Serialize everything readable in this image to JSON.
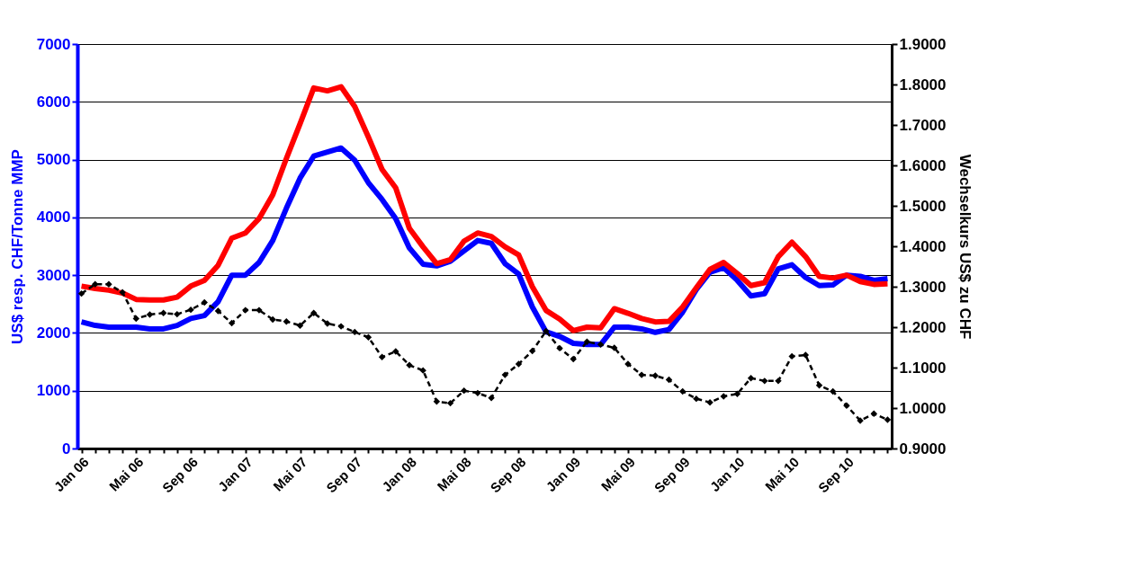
{
  "chart_data": {
    "type": "line",
    "ylabel": "US$ resp. CHF/Tonne MMP",
    "y2label": "Wechselkurs US$ zu CHF",
    "categories": [
      "Jan 06",
      null,
      null,
      null,
      "Mai 06",
      null,
      null,
      null,
      "Sep 06",
      null,
      null,
      null,
      "Jan 07",
      null,
      null,
      null,
      "Mai 07",
      null,
      null,
      null,
      "Sep 07",
      null,
      null,
      null,
      "Jan 08",
      null,
      null,
      null,
      "Mai 08",
      null,
      null,
      null,
      "Sep 08",
      null,
      null,
      null,
      "Jan 09",
      null,
      null,
      null,
      "Mai 09",
      null,
      null,
      null,
      "Sep 09",
      null,
      null,
      null,
      "Jan 10",
      null,
      null,
      null,
      "Mai 10",
      null,
      null,
      null,
      "Sep 10",
      null,
      null,
      null
    ],
    "ylim": [
      0,
      7000
    ],
    "yticks": [
      0,
      1000,
      2000,
      3000,
      4000,
      5000,
      6000,
      7000
    ],
    "y2lim": [
      0.9,
      1.9
    ],
    "y2ticks": [
      {
        "value": 0.9,
        "label": "0.9000"
      },
      {
        "value": 1.0,
        "label": "1.0000"
      },
      {
        "value": 1.1,
        "label": "1.1000"
      },
      {
        "value": 1.2,
        "label": "1.2000"
      },
      {
        "value": 1.3,
        "label": "1.3000"
      },
      {
        "value": 1.4,
        "label": "1.4000"
      },
      {
        "value": 1.5,
        "label": "1.5000"
      },
      {
        "value": 1.6,
        "label": "1.6000"
      },
      {
        "value": 1.7,
        "label": "1.7000"
      },
      {
        "value": 1.8,
        "label": "1.8000"
      },
      {
        "value": 1.9,
        "label": "1.9000"
      }
    ],
    "grid": "y",
    "legend": false,
    "series": [
      {
        "color": "#0000ff",
        "marker": "none",
        "line_style": "solid",
        "values": [
          2190,
          2130,
          2100,
          2100,
          2100,
          2070,
          2070,
          2130,
          2250,
          2300,
          2540,
          3000,
          3000,
          3220,
          3600,
          4160,
          4680,
          5060,
          5130,
          5200,
          4990,
          4600,
          4310,
          3980,
          3470,
          3190,
          3160,
          3240,
          3420,
          3600,
          3550,
          3200,
          3020,
          2450,
          2020,
          1940,
          1820,
          1800,
          1800,
          2100,
          2100,
          2070,
          2010,
          2060,
          2360,
          2750,
          3050,
          3130,
          2910,
          2640,
          2680,
          3110,
          3180,
          2960,
          2820,
          2830,
          3000,
          2980,
          2910,
          2940
        ]
      },
      {
        "color": "#ff0000",
        "marker": "none",
        "line_style": "solid",
        "values": [
          2810,
          2770,
          2740,
          2690,
          2580,
          2570,
          2570,
          2620,
          2810,
          2910,
          3170,
          3640,
          3730,
          3980,
          4390,
          5020,
          5620,
          6240,
          6190,
          6260,
          5920,
          5390,
          4830,
          4510,
          3810,
          3490,
          3200,
          3270,
          3590,
          3730,
          3670,
          3490,
          3350,
          2800,
          2390,
          2240,
          2040,
          2100,
          2090,
          2420,
          2340,
          2250,
          2190,
          2200,
          2450,
          2780,
          3100,
          3220,
          3030,
          2820,
          2870,
          3320,
          3570,
          3320,
          2980,
          2950,
          3000,
          2890,
          2840,
          2850
        ]
      },
      {
        "color": "#000000",
        "axis": "y2",
        "marker": "diamond",
        "line_style": "dashed",
        "values": [
          1.283,
          1.306,
          1.306,
          1.286,
          1.221,
          1.231,
          1.235,
          1.232,
          1.243,
          1.261,
          1.24,
          1.21,
          1.242,
          1.242,
          1.219,
          1.214,
          1.204,
          1.235,
          1.209,
          1.202,
          1.188,
          1.175,
          1.126,
          1.14,
          1.106,
          1.093,
          1.016,
          1.012,
          1.043,
          1.037,
          1.025,
          1.082,
          1.109,
          1.141,
          1.19,
          1.148,
          1.121,
          1.164,
          1.157,
          1.149,
          1.109,
          1.082,
          1.08,
          1.07,
          1.041,
          1.023,
          1.014,
          1.029,
          1.035,
          1.074,
          1.067,
          1.067,
          1.128,
          1.131,
          1.056,
          1.041,
          1.006,
          0.969,
          0.986,
          0.971
        ]
      }
    ]
  }
}
